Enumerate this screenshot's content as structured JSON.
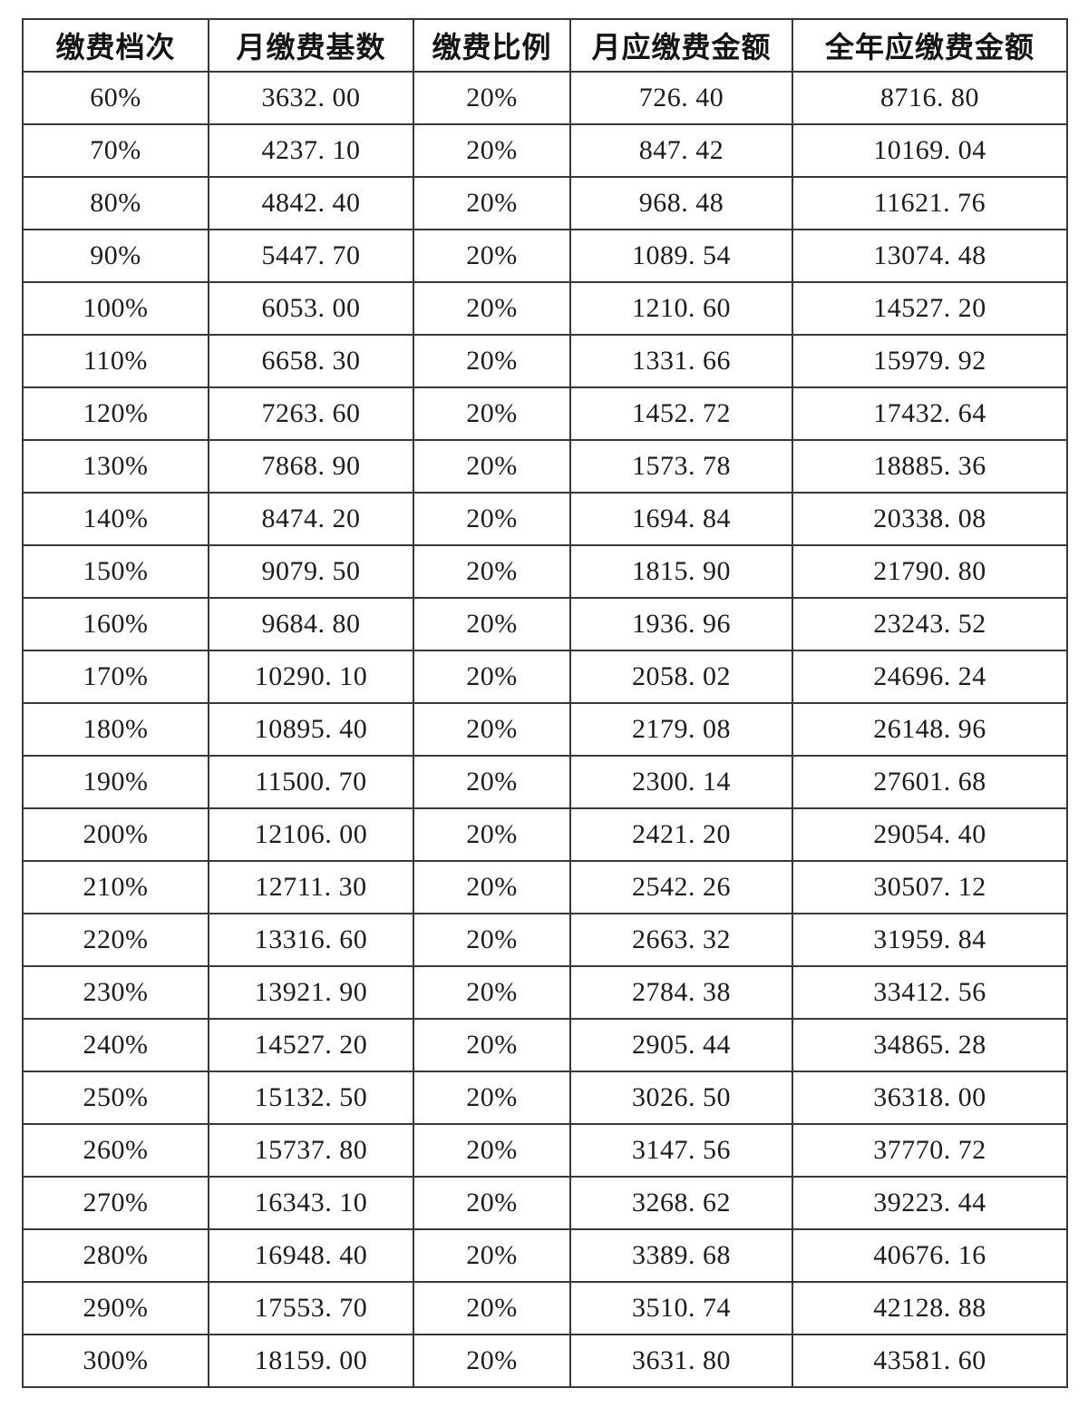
{
  "table": {
    "columns": [
      "缴费档次",
      "月缴费基数",
      "缴费比例",
      "月应缴费金额",
      "全年应缴费金额"
    ],
    "rows": [
      {
        "tier": "60%",
        "base": "3632.00",
        "ratio": "20%",
        "monthly": "726.40",
        "annual": "8716.80"
      },
      {
        "tier": "70%",
        "base": "4237.10",
        "ratio": "20%",
        "monthly": "847.42",
        "annual": "10169.04"
      },
      {
        "tier": "80%",
        "base": "4842.40",
        "ratio": "20%",
        "monthly": "968.48",
        "annual": "11621.76"
      },
      {
        "tier": "90%",
        "base": "5447.70",
        "ratio": "20%",
        "monthly": "1089.54",
        "annual": "13074.48"
      },
      {
        "tier": "100%",
        "base": "6053.00",
        "ratio": "20%",
        "monthly": "1210.60",
        "annual": "14527.20"
      },
      {
        "tier": "110%",
        "base": "6658.30",
        "ratio": "20%",
        "monthly": "1331.66",
        "annual": "15979.92"
      },
      {
        "tier": "120%",
        "base": "7263.60",
        "ratio": "20%",
        "monthly": "1452.72",
        "annual": "17432.64"
      },
      {
        "tier": "130%",
        "base": "7868.90",
        "ratio": "20%",
        "monthly": "1573.78",
        "annual": "18885.36"
      },
      {
        "tier": "140%",
        "base": "8474.20",
        "ratio": "20%",
        "monthly": "1694.84",
        "annual": "20338.08"
      },
      {
        "tier": "150%",
        "base": "9079.50",
        "ratio": "20%",
        "monthly": "1815.90",
        "annual": "21790.80"
      },
      {
        "tier": "160%",
        "base": "9684.80",
        "ratio": "20%",
        "monthly": "1936.96",
        "annual": "23243.52"
      },
      {
        "tier": "170%",
        "base": "10290.10",
        "ratio": "20%",
        "monthly": "2058.02",
        "annual": "24696.24"
      },
      {
        "tier": "180%",
        "base": "10895.40",
        "ratio": "20%",
        "monthly": "2179.08",
        "annual": "26148.96"
      },
      {
        "tier": "190%",
        "base": "11500.70",
        "ratio": "20%",
        "monthly": "2300.14",
        "annual": "27601.68"
      },
      {
        "tier": "200%",
        "base": "12106.00",
        "ratio": "20%",
        "monthly": "2421.20",
        "annual": "29054.40"
      },
      {
        "tier": "210%",
        "base": "12711.30",
        "ratio": "20%",
        "monthly": "2542.26",
        "annual": "30507.12"
      },
      {
        "tier": "220%",
        "base": "13316.60",
        "ratio": "20%",
        "monthly": "2663.32",
        "annual": "31959.84"
      },
      {
        "tier": "230%",
        "base": "13921.90",
        "ratio": "20%",
        "monthly": "2784.38",
        "annual": "33412.56"
      },
      {
        "tier": "240%",
        "base": "14527.20",
        "ratio": "20%",
        "monthly": "2905.44",
        "annual": "34865.28"
      },
      {
        "tier": "250%",
        "base": "15132.50",
        "ratio": "20%",
        "monthly": "3026.50",
        "annual": "36318.00"
      },
      {
        "tier": "260%",
        "base": "15737.80",
        "ratio": "20%",
        "monthly": "3147.56",
        "annual": "37770.72"
      },
      {
        "tier": "270%",
        "base": "16343.10",
        "ratio": "20%",
        "monthly": "3268.62",
        "annual": "39223.44"
      },
      {
        "tier": "280%",
        "base": "16948.40",
        "ratio": "20%",
        "monthly": "3389.68",
        "annual": "40676.16"
      },
      {
        "tier": "290%",
        "base": "17553.70",
        "ratio": "20%",
        "monthly": "3510.74",
        "annual": "42128.88"
      },
      {
        "tier": "300%",
        "base": "18159.00",
        "ratio": "20%",
        "monthly": "3631.80",
        "annual": "43581.60"
      }
    ]
  },
  "style_tokens": {
    "border_color": "#383838",
    "text_color": "#1c1c1c",
    "background_color": "#ffffff"
  }
}
